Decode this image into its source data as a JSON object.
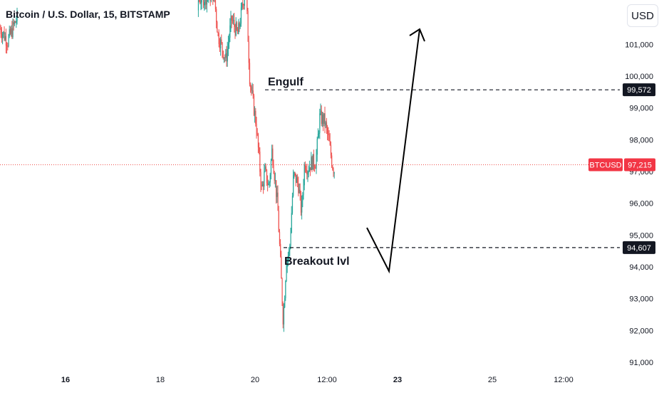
{
  "header": {
    "title": "Bitcoin / U.S. Dollar, 15, BITSTAMP",
    "currency_button": "USD"
  },
  "colors": {
    "up": "#26a69a",
    "down": "#ef5350",
    "price_line": "#ef5350",
    "label_dark": "#131722",
    "label_red": "#f23645"
  },
  "chart_data": {
    "type": "candlestick",
    "y_axis": {
      "ylim": [
        90700,
        102200
      ],
      "ticks": [
        "91,000",
        "92,000",
        "93,000",
        "94,000",
        "95,000",
        "96,000",
        "97,000",
        "98,000",
        "99,000",
        "100,000",
        "101,000"
      ]
    },
    "x_axis": {
      "ticks": [
        "16",
        "18",
        "20",
        "12:00",
        "23",
        "25",
        "12:00"
      ],
      "bold": [
        "16",
        "23"
      ]
    },
    "price_path": [
      [
        0,
        101500
      ],
      [
        1.5,
        101100
      ],
      [
        3,
        101700
      ],
      [
        3.5,
        101900
      ],
      [
        4,
        102400
      ],
      [
        6,
        102600
      ],
      [
        6.5,
        101300
      ],
      [
        7.5,
        100500
      ],
      [
        8.2,
        101800
      ],
      [
        9,
        101300
      ],
      [
        9.5,
        102100
      ],
      [
        10,
        102800
      ],
      [
        10.5,
        99900
      ],
      [
        11.3,
        98500
      ],
      [
        12,
        96400
      ],
      [
        12.4,
        97000
      ],
      [
        12.9,
        96500
      ],
      [
        13.3,
        97700
      ],
      [
        14,
        95900
      ],
      [
        14.3,
        94400
      ],
      [
        14.7,
        92300
      ],
      [
        15.1,
        94200
      ],
      [
        15.5,
        94500
      ],
      [
        16,
        96900
      ],
      [
        16.6,
        96600
      ],
      [
        17,
        95700
      ],
      [
        17.4,
        97300
      ],
      [
        17.8,
        97100
      ],
      [
        18.3,
        97300
      ],
      [
        18.8,
        97300
      ],
      [
        19.3,
        98700
      ],
      [
        19.9,
        98600
      ],
      [
        20.4,
        98000
      ],
      [
        20.9,
        97200
      ],
      [
        21.2,
        97000
      ]
    ],
    "levels": [
      {
        "name": "Engulf",
        "value": 99572,
        "label": "99,572"
      },
      {
        "name": "Breakout lvl",
        "value": 94607,
        "label": "94,607"
      }
    ],
    "current_price": {
      "symbol": "BTCUSD",
      "value": 97215,
      "label": "97,215"
    },
    "annotations": [
      "Engulf",
      "Breakout lvl"
    ],
    "projection": "arrow down to breakout level then up beyond 101,000"
  }
}
